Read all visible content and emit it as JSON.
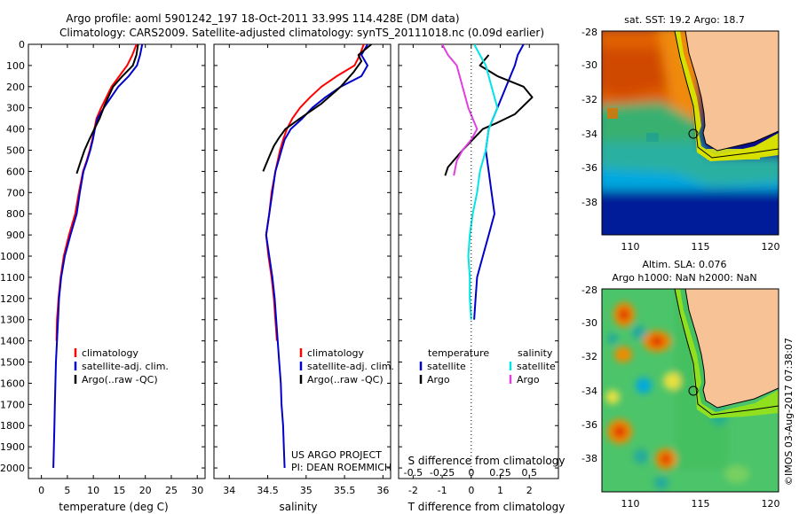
{
  "title": {
    "line1": "Argo profile: aoml 5901242_197 18-Oct-2011 33.99S 114.428E (DM data)",
    "line2": "Climatology: CARS2009. Satellite-adjusted climatology: synTS_20111018.nc (0.09d earlier)"
  },
  "colors": {
    "climatology": "#ff0000",
    "satellite": "#0000cc",
    "argo": "#000000",
    "sal_satellite": "#00e5e5",
    "sal_argo": "#e040e0",
    "land": "#f7c296"
  },
  "chart_data": [
    {
      "type": "line",
      "panel": "temperature",
      "xlabel": "temperature (deg C)",
      "ylabel": "",
      "xlim": [
        -2.5,
        31.5
      ],
      "ylim": [
        2050,
        0
      ],
      "x_ticks": [
        0,
        5,
        10,
        15,
        20,
        25,
        30
      ],
      "y_ticks": [
        0,
        100,
        200,
        300,
        400,
        500,
        600,
        700,
        800,
        900,
        1000,
        1100,
        1200,
        1300,
        1400,
        1500,
        1600,
        1700,
        1800,
        1900,
        2000
      ],
      "legend": [
        "climatology",
        "satellite-adj. clim.",
        "Argo(..raw -QC)"
      ],
      "series": [
        {
          "name": "climatology",
          "points": [
            [
              18.3,
              0
            ],
            [
              17.5,
              50
            ],
            [
              16.5,
              100
            ],
            [
              15,
              150
            ],
            [
              13.5,
              200
            ],
            [
              12.5,
              250
            ],
            [
              11.5,
              300
            ],
            [
              10.6,
              350
            ],
            [
              10.2,
              400
            ],
            [
              9.8,
              450
            ],
            [
              9.3,
              500
            ],
            [
              8.7,
              550
            ],
            [
              8,
              600
            ],
            [
              7.2,
              700
            ],
            [
              6.5,
              800
            ],
            [
              5.3,
              900
            ],
            [
              4.3,
              1000
            ],
            [
              3.7,
              1100
            ],
            [
              3.3,
              1200
            ],
            [
              3,
              1300
            ],
            [
              2.9,
              1400
            ]
          ]
        },
        {
          "name": "satellite-adj. clim.",
          "points": [
            [
              19.4,
              0
            ],
            [
              19,
              50
            ],
            [
              18.4,
              100
            ],
            [
              16.8,
              150
            ],
            [
              14.8,
              200
            ],
            [
              13.4,
              250
            ],
            [
              12,
              300
            ],
            [
              10.8,
              350
            ],
            [
              10.3,
              400
            ],
            [
              9.9,
              450
            ],
            [
              9.4,
              500
            ],
            [
              8.8,
              550
            ],
            [
              8.1,
              600
            ],
            [
              7.4,
              700
            ],
            [
              6.8,
              800
            ],
            [
              5.6,
              900
            ],
            [
              4.5,
              1000
            ],
            [
              3.8,
              1100
            ],
            [
              3.4,
              1200
            ],
            [
              3.2,
              1300
            ],
            [
              3,
              1400
            ],
            [
              2.8,
              1500
            ],
            [
              2.7,
              1600
            ],
            [
              2.6,
              1700
            ],
            [
              2.5,
              1800
            ],
            [
              2.4,
              1900
            ],
            [
              2.3,
              2000
            ]
          ]
        },
        {
          "name": "Argo(..raw -QC)",
          "points": [
            [
              18.6,
              0
            ],
            [
              18.3,
              50
            ],
            [
              17.6,
              100
            ],
            [
              15.6,
              150
            ],
            [
              13.8,
              200
            ],
            [
              12.3,
              280
            ],
            [
              11.2,
              350
            ],
            [
              10.2,
              400
            ],
            [
              9.2,
              450
            ],
            [
              8.3,
              500
            ],
            [
              7.6,
              550
            ],
            [
              6.8,
              610
            ]
          ]
        }
      ]
    },
    {
      "type": "line",
      "panel": "salinity",
      "xlabel": "salinity",
      "ylabel": "",
      "xlim": [
        33.8,
        36.1
      ],
      "ylim": [
        2050,
        0
      ],
      "x_ticks": [
        34,
        34.5,
        35,
        35.5,
        36
      ],
      "legend": [
        "climatology",
        "satellite-adj. clim.",
        "Argo(..raw -QC)"
      ],
      "annotations": [
        "US ARGO PROJECT",
        "PI: DEAN ROEMMICH"
      ],
      "series": [
        {
          "name": "climatology",
          "points": [
            [
              35.75,
              0
            ],
            [
              35.7,
              50
            ],
            [
              35.63,
              100
            ],
            [
              35.4,
              150
            ],
            [
              35.2,
              200
            ],
            [
              35.05,
              250
            ],
            [
              34.92,
              300
            ],
            [
              34.82,
              350
            ],
            [
              34.75,
              400
            ],
            [
              34.7,
              450
            ],
            [
              34.66,
              500
            ],
            [
              34.63,
              550
            ],
            [
              34.6,
              600
            ],
            [
              34.55,
              700
            ],
            [
              34.52,
              800
            ],
            [
              34.48,
              900
            ],
            [
              34.51,
              1000
            ],
            [
              34.55,
              1100
            ],
            [
              34.58,
              1200
            ],
            [
              34.6,
              1300
            ],
            [
              34.62,
              1400
            ]
          ]
        },
        {
          "name": "satellite-adj. clim.",
          "points": [
            [
              35.8,
              0
            ],
            [
              35.72,
              50
            ],
            [
              35.8,
              100
            ],
            [
              35.72,
              150
            ],
            [
              35.45,
              200
            ],
            [
              35.25,
              250
            ],
            [
              35.08,
              300
            ],
            [
              34.95,
              350
            ],
            [
              34.8,
              400
            ],
            [
              34.72,
              450
            ],
            [
              34.68,
              500
            ],
            [
              34.64,
              550
            ],
            [
              34.6,
              600
            ],
            [
              34.56,
              700
            ],
            [
              34.52,
              800
            ],
            [
              34.48,
              900
            ],
            [
              34.52,
              1000
            ],
            [
              34.56,
              1100
            ],
            [
              34.59,
              1200
            ],
            [
              34.61,
              1300
            ],
            [
              34.63,
              1400
            ],
            [
              34.65,
              1500
            ],
            [
              34.67,
              1600
            ],
            [
              34.68,
              1700
            ],
            [
              34.7,
              1800
            ],
            [
              34.71,
              1900
            ],
            [
              34.72,
              2000
            ]
          ]
        },
        {
          "name": "Argo(..raw -QC)",
          "points": [
            [
              35.85,
              0
            ],
            [
              35.68,
              50
            ],
            [
              35.72,
              80
            ],
            [
              35.62,
              130
            ],
            [
              35.45,
              200
            ],
            [
              35.2,
              280
            ],
            [
              34.92,
              350
            ],
            [
              34.73,
              400
            ],
            [
              34.65,
              440
            ],
            [
              34.58,
              480
            ],
            [
              34.52,
              530
            ],
            [
              34.44,
              600
            ]
          ]
        }
      ]
    },
    {
      "type": "line",
      "panel": "difference",
      "xlabel": "T difference from climatology",
      "xlabel_top": "S difference from climatology",
      "xlim": [
        -2.5,
        3
      ],
      "ylim": [
        2050,
        0
      ],
      "x_ticks": [
        -2,
        -1,
        0,
        1,
        2
      ],
      "x_ticks_top": [
        -0.5,
        -0.25,
        0,
        0.25,
        0.5
      ],
      "legend_headers": [
        "temperature",
        "salinity"
      ],
      "legend": [
        "satellite",
        "Argo",
        "satellite",
        "Argo"
      ],
      "series": [
        {
          "name": "temperature satellite",
          "points": [
            [
              1.8,
              0
            ],
            [
              1.6,
              50
            ],
            [
              1.5,
              100
            ],
            [
              1.2,
              200
            ],
            [
              0.9,
              300
            ],
            [
              0.6,
              400
            ],
            [
              0.5,
              500
            ],
            [
              0.6,
              600
            ],
            [
              0.7,
              700
            ],
            [
              0.8,
              800
            ],
            [
              0.6,
              900
            ],
            [
              0.4,
              1000
            ],
            [
              0.2,
              1100
            ],
            [
              0.15,
              1200
            ],
            [
              0.1,
              1300
            ]
          ]
        },
        {
          "name": "temperature Argo",
          "points": [
            [
              0.6,
              50
            ],
            [
              0.3,
              100
            ],
            [
              0.9,
              150
            ],
            [
              1.8,
              200
            ],
            [
              2.1,
              250
            ],
            [
              1.5,
              330
            ],
            [
              0.9,
              370
            ],
            [
              0.4,
              400
            ],
            [
              -0.3,
              500
            ],
            [
              -0.8,
              580
            ],
            [
              -0.9,
              620
            ]
          ]
        },
        {
          "name": "salinity satellite",
          "points": [
            [
              0.1,
              0
            ],
            [
              0.3,
              50
            ],
            [
              0.5,
              100
            ],
            [
              0.7,
              200
            ],
            [
              0.9,
              300
            ],
            [
              0.6,
              400
            ],
            [
              0.5,
              500
            ],
            [
              0.3,
              600
            ],
            [
              0.2,
              700
            ],
            [
              0.05,
              800
            ],
            [
              -0.05,
              900
            ],
            [
              -0.1,
              1000
            ],
            [
              -0.05,
              1100
            ],
            [
              -0.05,
              1200
            ],
            [
              0,
              1300
            ]
          ]
        },
        {
          "name": "salinity Argo",
          "points": [
            [
              -1.0,
              0
            ],
            [
              -0.8,
              50
            ],
            [
              -0.5,
              100
            ],
            [
              -0.3,
              200
            ],
            [
              -0.1,
              300
            ],
            [
              0.2,
              400
            ],
            [
              0,
              450
            ],
            [
              -0.3,
              500
            ],
            [
              -0.5,
              550
            ],
            [
              -0.6,
              620
            ]
          ]
        }
      ]
    }
  ],
  "maps": {
    "sst": {
      "title": "sat. SST: 19.2 Argo: 18.7",
      "x_ticks": [
        "110",
        "115",
        "120"
      ],
      "y_ticks": [
        "-28",
        "-30",
        "-32",
        "-34",
        "-36",
        "-38"
      ],
      "lon_range": [
        108,
        120.5
      ],
      "lat_range": [
        -40,
        -28
      ]
    },
    "sla": {
      "title1": "Altim. SLA: 0.076",
      "title2": "Argo h1000: NaN h2000: NaN",
      "x_ticks": [
        "110",
        "115",
        "120"
      ],
      "y_ticks": [
        "-28",
        "-30",
        "-32",
        "-34",
        "-36",
        "-38"
      ],
      "lon_range": [
        108,
        120.5
      ],
      "lat_range": [
        -40,
        -28
      ]
    },
    "argo_position": {
      "lon": 114.428,
      "lat": -33.99
    }
  },
  "credit": "©IMOS 03-Aug-2017 07:38:07"
}
